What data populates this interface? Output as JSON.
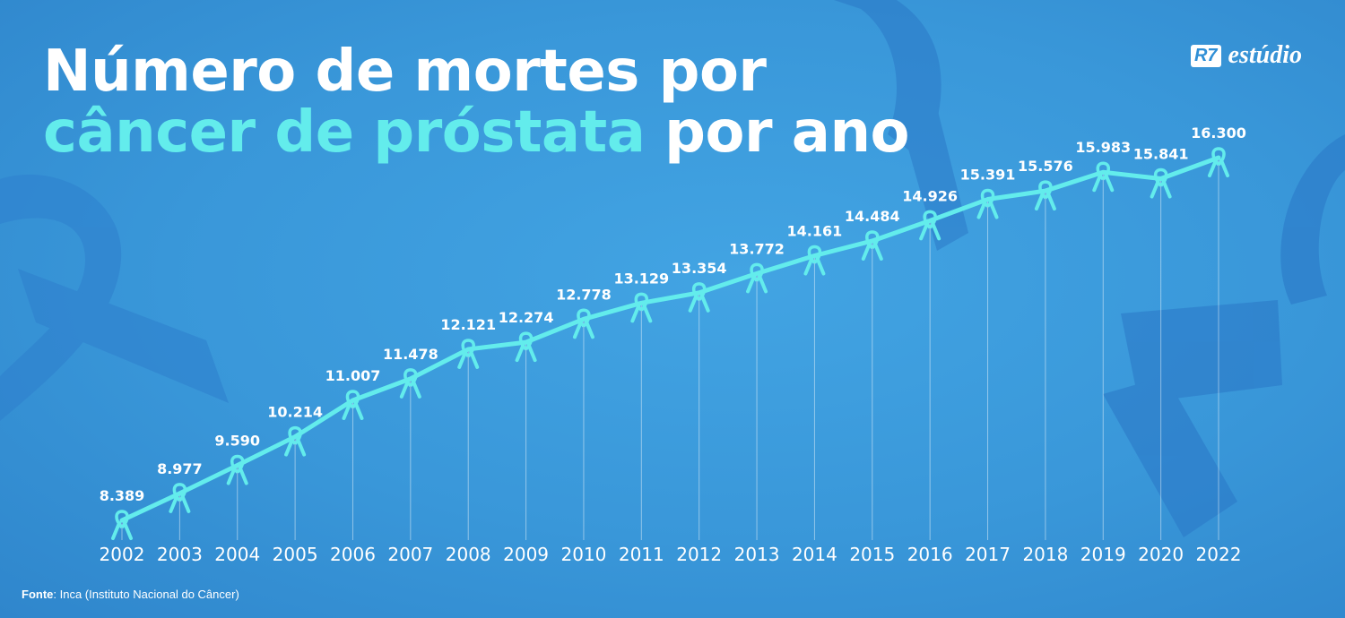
{
  "title": {
    "line1": "Número de mortes por",
    "line2_highlight": "câncer de próstata",
    "line2_rest": " por ano"
  },
  "logo": {
    "badge": "R7",
    "text": "estúdio"
  },
  "source": {
    "label": "Fonte",
    "text": ": Inca (Instituto Nacional do Câncer)"
  },
  "colors": {
    "background": "#3a9adb",
    "line": "#63ecec",
    "highlight": "#63ecec",
    "text": "#ffffff"
  },
  "marker_icon": "awareness-ribbon-icon",
  "chart_data": {
    "type": "line",
    "title": "Número de mortes por câncer de próstata por ano",
    "categories": [
      "2002",
      "2003",
      "2004",
      "2005",
      "2006",
      "2007",
      "2008",
      "2009",
      "2010",
      "2011",
      "2012",
      "2013",
      "2014",
      "2015",
      "2016",
      "2017",
      "2018",
      "2019",
      "2020",
      "2022"
    ],
    "values": [
      8389,
      8977,
      9590,
      10214,
      11007,
      11478,
      12121,
      12274,
      12778,
      13129,
      13354,
      13772,
      14161,
      14484,
      14926,
      15391,
      15576,
      15983,
      15841,
      16300
    ],
    "value_labels": [
      "8.389",
      "8.977",
      "9.590",
      "10.214",
      "11.007",
      "11.478",
      "12.121",
      "12.274",
      "12.778",
      "13.129",
      "13.354",
      "13.772",
      "14.161",
      "14.484",
      "14.926",
      "15.391",
      "15.576",
      "15.983",
      "15.841",
      "16.300"
    ],
    "grid": false,
    "legend": "none"
  }
}
